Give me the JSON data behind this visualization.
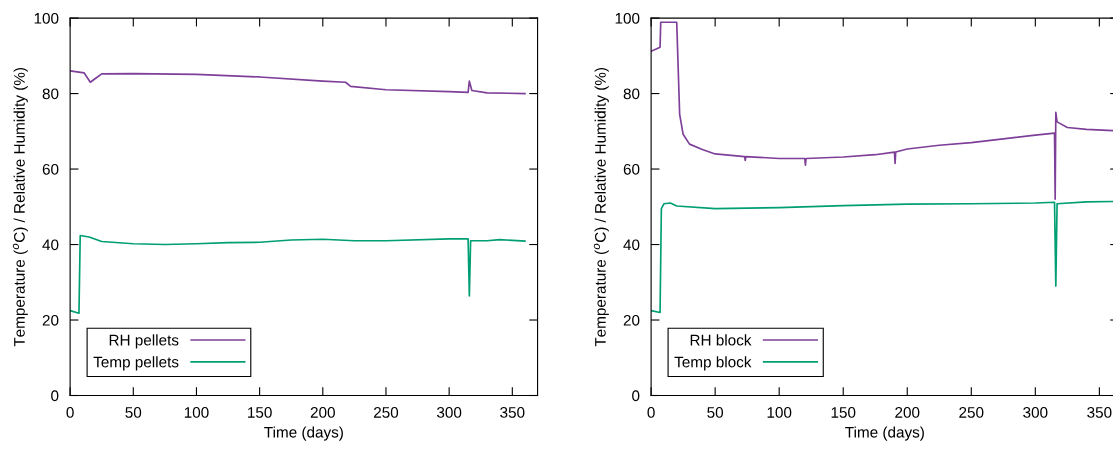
{
  "chart_data": [
    {
      "type": "line",
      "xlabel": "Time (days)",
      "ylabel": "Temperature ($^{o}$C) / Relative Humidity (%)",
      "xlim": [
        0,
        370
      ],
      "xticks": [
        0,
        50,
        100,
        150,
        200,
        250,
        300,
        350
      ],
      "ylim": [
        0,
        100
      ],
      "yticks": [
        0,
        20,
        40,
        60,
        80,
        100
      ],
      "legend": "bottom left",
      "grid": false,
      "line_style": "solid",
      "marker": "none",
      "series": [
        {
          "name": "RH pellets",
          "color": "#7e3f98",
          "x": [
            0,
            7,
            11,
            16,
            20,
            25,
            50,
            100,
            150,
            200,
            218,
            222,
            250,
            300,
            315,
            316,
            318,
            330,
            360
          ],
          "values": [
            86.0,
            85.7,
            85.5,
            83.0,
            84.0,
            85.2,
            85.3,
            85.1,
            84.4,
            83.3,
            83.0,
            81.9,
            81.0,
            80.5,
            80.3,
            83.3,
            80.8,
            80.2,
            80.0
          ]
        },
        {
          "name": "Temp pellets",
          "color": "#009e73",
          "x": [
            0,
            7,
            8,
            15,
            25,
            50,
            75,
            100,
            125,
            150,
            175,
            200,
            225,
            250,
            300,
            315,
            316,
            317,
            330,
            340,
            360
          ],
          "values": [
            22.5,
            21.8,
            42.4,
            42.0,
            40.8,
            40.2,
            40.0,
            40.2,
            40.5,
            40.6,
            41.2,
            41.4,
            41.0,
            41.0,
            41.5,
            41.5,
            26.4,
            41.0,
            41.0,
            41.3,
            40.9
          ]
        }
      ]
    },
    {
      "type": "line",
      "xlabel": "Time (days)",
      "ylabel": "Temperature ($^{o}$C) / Relative Humidity (%)",
      "xlim": [
        0,
        365
      ],
      "xticks": [
        0,
        50,
        100,
        150,
        200,
        250,
        300,
        350
      ],
      "ylim": [
        0,
        100
      ],
      "yticks": [
        0,
        20,
        40,
        60,
        80,
        100
      ],
      "legend": "bottom left",
      "grid": false,
      "line_style": "solid",
      "marker": "none",
      "series": [
        {
          "name": "RH block",
          "color": "#7e3f98",
          "x": [
            0,
            7,
            7.5,
            20,
            22.3,
            25,
            30,
            40,
            50,
            73,
            73.5,
            74,
            100,
            120,
            120.5,
            121,
            150,
            175,
            190,
            190.5,
            191,
            200,
            225,
            250,
            275,
            300,
            315,
            315.5,
            316,
            317,
            325,
            340,
            360
          ],
          "values": [
            91.2,
            92.3,
            98.9,
            98.9,
            74.5,
            69.2,
            66.6,
            65.2,
            64.0,
            63.3,
            62.3,
            63.3,
            62.8,
            62.8,
            61.0,
            62.8,
            63.2,
            63.8,
            64.5,
            61.5,
            64.5,
            65.3,
            66.3,
            67.0,
            68.0,
            69.0,
            69.5,
            52.0,
            75.0,
            72.5,
            71.0,
            70.5,
            70.2
          ]
        },
        {
          "name": "Temp block",
          "color": "#009e73",
          "x": [
            0,
            7,
            8,
            10,
            15,
            20,
            50,
            100,
            150,
            200,
            250,
            300,
            315,
            316,
            317,
            340,
            360
          ],
          "values": [
            22.5,
            22.0,
            49.5,
            50.8,
            51.0,
            50.2,
            49.5,
            49.8,
            50.3,
            50.7,
            50.8,
            51.0,
            51.2,
            29.0,
            50.8,
            51.3,
            51.4
          ]
        }
      ]
    }
  ]
}
